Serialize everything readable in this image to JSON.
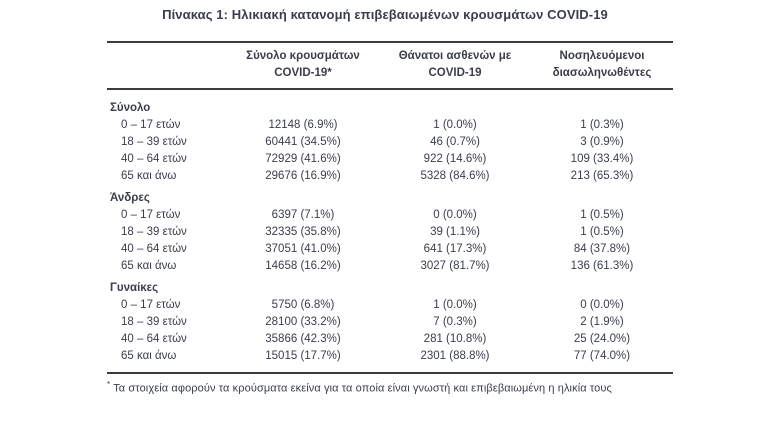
{
  "title": "Πίνακας 1: Ηλικιακή κατανομή επιβεβαιωμένων κρουσμάτων COVID-19",
  "colors": {
    "text": "#3a3e49",
    "border": "#3c3c3c",
    "background": "#ffffff"
  },
  "table": {
    "headers": [
      {
        "line1": "Σύνολο κρουσμάτων",
        "line2": "COVID-19*"
      },
      {
        "line1": "Θάνατοι ασθενών με",
        "line2": "COVID-19"
      },
      {
        "line1": "Νοσηλευόμενοι",
        "line2": "διασωληνωθέντες"
      }
    ],
    "sections": [
      {
        "label": "Σύνολο",
        "rows": [
          {
            "label": "0 – 17 ετών",
            "cases": "12148 (6.9%)",
            "deaths": "1 (0.0%)",
            "intubated": "1 (0.3%)"
          },
          {
            "label": "18 – 39 ετών",
            "cases": "60441 (34.5%)",
            "deaths": "46 (0.7%)",
            "intubated": "3 (0.9%)"
          },
          {
            "label": "40 – 64 ετών",
            "cases": "72929 (41.6%)",
            "deaths": "922 (14.6%)",
            "intubated": "109 (33.4%)"
          },
          {
            "label": "65 και άνω",
            "cases": "29676 (16.9%)",
            "deaths": "5328 (84.6%)",
            "intubated": "213 (65.3%)"
          }
        ]
      },
      {
        "label": "Άνδρες",
        "rows": [
          {
            "label": "0 – 17 ετών",
            "cases": "6397 (7.1%)",
            "deaths": "0 (0.0%)",
            "intubated": "1 (0.5%)"
          },
          {
            "label": "18 – 39 ετών",
            "cases": "32335 (35.8%)",
            "deaths": "39 (1.1%)",
            "intubated": "1 (0.5%)"
          },
          {
            "label": "40 – 64 ετών",
            "cases": "37051 (41.0%)",
            "deaths": "641 (17.3%)",
            "intubated": "84 (37.8%)"
          },
          {
            "label": "65 και άνω",
            "cases": "14658 (16.2%)",
            "deaths": "3027 (81.7%)",
            "intubated": "136 (61.3%)"
          }
        ]
      },
      {
        "label": "Γυναίκες",
        "rows": [
          {
            "label": "0 – 17 ετών",
            "cases": "5750 (6.8%)",
            "deaths": "1 (0.0%)",
            "intubated": "0 (0.0%)"
          },
          {
            "label": "18 – 39 ετών",
            "cases": "28100 (33.2%)",
            "deaths": "7 (0.3%)",
            "intubated": "2 (1.9%)"
          },
          {
            "label": "40 – 64 ετών",
            "cases": "35866 (42.3%)",
            "deaths": "281 (10.8%)",
            "intubated": "25 (24.0%)"
          },
          {
            "label": "65 και άνω",
            "cases": "15015 (17.7%)",
            "deaths": "2301 (88.8%)",
            "intubated": "77 (74.0%)"
          }
        ]
      }
    ]
  },
  "footnote": {
    "marker": "*",
    "text": "Τα στοιχεία αφορούν τα κρούσματα εκείνα για τα οποία είναι γνωστή και επιβεβαιωμένη η ηλικία τους"
  }
}
